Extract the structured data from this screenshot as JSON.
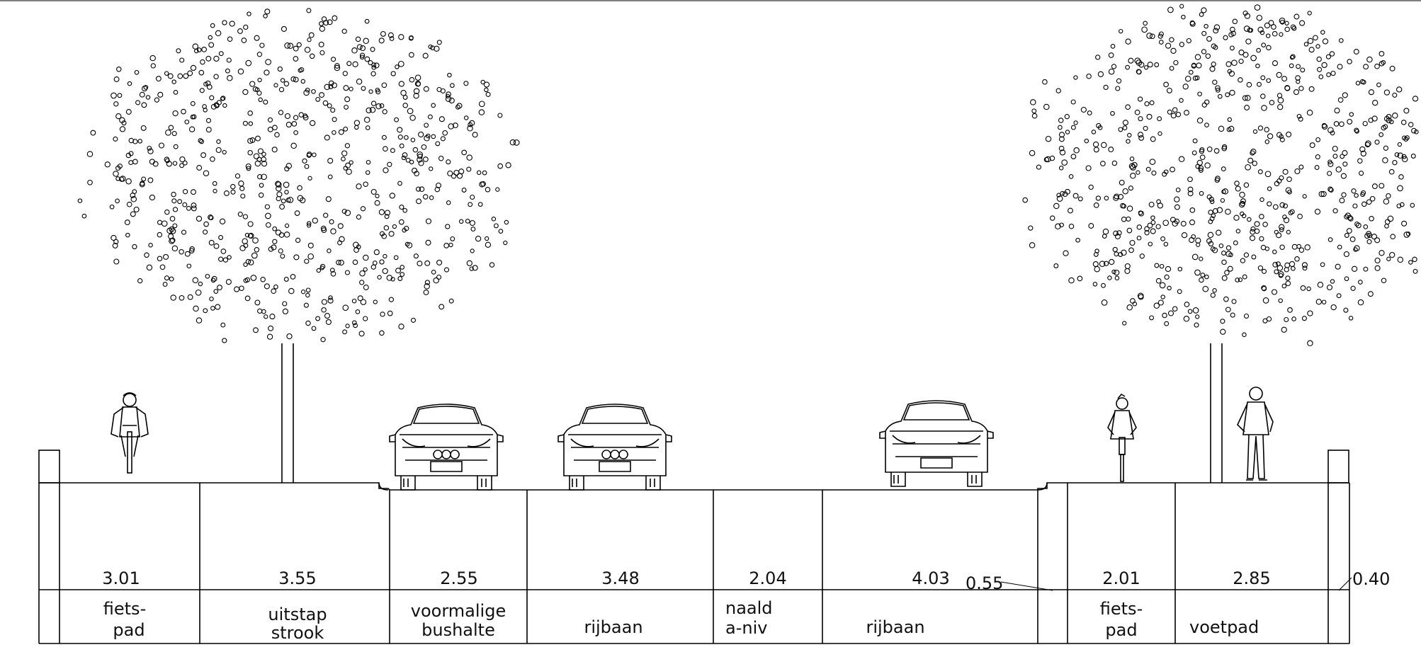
{
  "segments": [
    {
      "width": "3.01",
      "label_line1": "fiets-",
      "label_line2": "pad"
    },
    {
      "width": "3.55",
      "label_line1": "uitstap",
      "label_line2": "strook"
    },
    {
      "width": "2.55",
      "label_line1": "voormalige",
      "label_line2": "bushalte"
    },
    {
      "width": "3.48",
      "label_line1": "rijbaan",
      "label_line2": ""
    },
    {
      "width": "2.04",
      "label_line1": "naald",
      "label_line2": "a-niv"
    },
    {
      "width": "4.03",
      "label_line1": "rijbaan",
      "label_line2": ""
    },
    {
      "width": "2.01",
      "label_line1": "fiets-",
      "label_line2": "pad"
    },
    {
      "width": "2.85",
      "label_line1": "voetpad",
      "label_line2": ""
    }
  ],
  "callouts": [
    {
      "width": "0.55"
    },
    {
      "width": "0.40"
    }
  ]
}
